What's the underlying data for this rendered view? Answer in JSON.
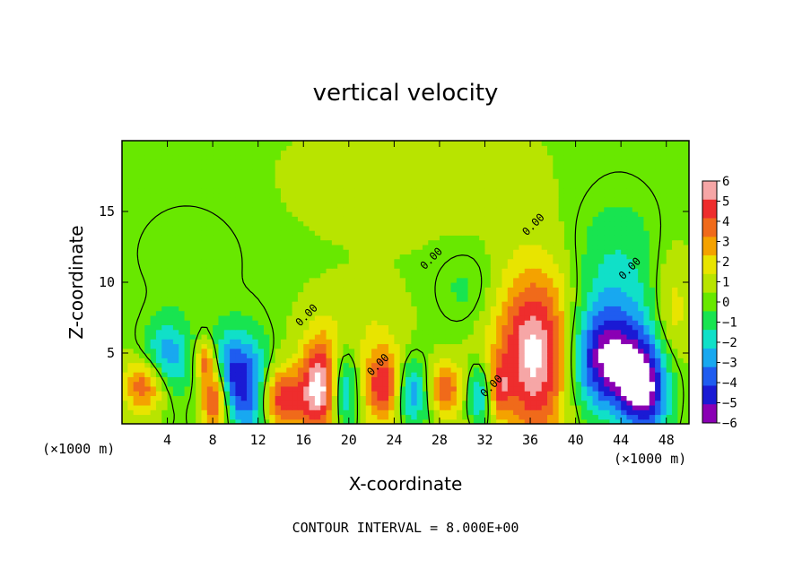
{
  "chart_data": {
    "type": "heatmap",
    "title": "vertical velocity",
    "xlabel": "X-coordinate",
    "ylabel": "Z-coordinate",
    "x_unit_label": "(×1000 m)",
    "x_unit_label_right": "(×1000 m)",
    "xlim": [
      0,
      50
    ],
    "ylim": [
      0,
      20
    ],
    "x_ticks": [
      4,
      8,
      12,
      16,
      20,
      24,
      28,
      32,
      36,
      40,
      44,
      48
    ],
    "y_ticks": [
      5,
      10,
      15
    ],
    "colorbar": {
      "ticks": [
        6,
        5,
        4,
        3,
        2,
        1,
        0,
        -1,
        -2,
        -3,
        -4,
        -5,
        -6
      ],
      "colors": [
        "#f6a6a6",
        "#ee2d2d",
        "#f06a1a",
        "#f4a200",
        "#e8e400",
        "#b8e400",
        "#68e800",
        "#18e450",
        "#10e0c8",
        "#18a8f0",
        "#1f5cf0",
        "#1a1ad4",
        "#8a00b4"
      ]
    },
    "contour_labels": [
      {
        "text": "0.00",
        "x": 16.5,
        "y": 7.5
      },
      {
        "text": "0.00",
        "x": 27.5,
        "y": 11.5
      },
      {
        "text": "0.00",
        "x": 22.8,
        "y": 4.0
      },
      {
        "text": "0.00",
        "x": 36.5,
        "y": 13.9
      },
      {
        "text": "0.00",
        "x": 45.0,
        "y": 10.8
      },
      {
        "text": "0.00",
        "x": 32.8,
        "y": 2.5
      }
    ],
    "features": [
      {
        "x": 36.5,
        "z": 5.0,
        "sx": 2.6,
        "sz": 4.2,
        "w": 6.5
      },
      {
        "x": 42.5,
        "z": 4.5,
        "sx": 2.4,
        "sz": 2.6,
        "w": -6.0
      },
      {
        "x": 46.0,
        "z": 2.5,
        "sx": 1.6,
        "sz": 2.3,
        "w": -6.0
      },
      {
        "x": 43.5,
        "z": 9.5,
        "sx": 3.0,
        "sz": 4.5,
        "w": -2.2
      },
      {
        "x": 48.5,
        "z": 8.0,
        "sx": 1.2,
        "sz": 3.0,
        "w": 2.0
      },
      {
        "x": 17.5,
        "z": 2.6,
        "sx": 1.2,
        "sz": 2.4,
        "w": 6.5
      },
      {
        "x": 19.5,
        "z": 2.5,
        "sx": 0.9,
        "sz": 2.0,
        "w": -3.5
      },
      {
        "x": 14.0,
        "z": 1.8,
        "sx": 1.4,
        "sz": 1.6,
        "w": 5.0
      },
      {
        "x": 11.5,
        "z": 2.5,
        "sx": 1.2,
        "sz": 2.6,
        "w": -4.0
      },
      {
        "x": 8.3,
        "z": 2.0,
        "sx": 0.9,
        "sz": 1.8,
        "w": 6.5
      },
      {
        "x": 9.3,
        "z": 3.2,
        "sx": 1.2,
        "sz": 2.2,
        "w": -5.5
      },
      {
        "x": 2.0,
        "z": 2.8,
        "sx": 1.3,
        "sz": 1.3,
        "w": 4.0
      },
      {
        "x": 4.0,
        "z": 4.8,
        "sx": 1.5,
        "sz": 1.8,
        "w": -3.5
      },
      {
        "x": 7.3,
        "z": 4.5,
        "sx": 0.6,
        "sz": 1.0,
        "w": 3.5
      },
      {
        "x": 23.0,
        "z": 2.8,
        "sx": 1.2,
        "sz": 1.8,
        "w": 5.0
      },
      {
        "x": 25.5,
        "z": 2.3,
        "sx": 1.0,
        "sz": 1.6,
        "w": -3.5
      },
      {
        "x": 28.5,
        "z": 2.5,
        "sx": 1.0,
        "sz": 1.3,
        "w": 4.0
      },
      {
        "x": 31.5,
        "z": 2.0,
        "sx": 0.8,
        "sz": 1.6,
        "w": -3.5
      },
      {
        "x": 33.3,
        "z": 2.5,
        "sx": 0.6,
        "sz": 1.4,
        "w": 3.0
      },
      {
        "x": 21.0,
        "z": 7.0,
        "sx": 3.0,
        "sz": 2.0,
        "w": 1.0
      },
      {
        "x": 6.0,
        "z": 12.0,
        "sx": 4.0,
        "sz": 3.0,
        "w": -0.7
      },
      {
        "x": 30.5,
        "z": 9.5,
        "sx": 2.0,
        "sz": 2.0,
        "w": -1.2
      },
      {
        "x": 26.0,
        "z": 17.0,
        "sx": 8.0,
        "sz": 3.0,
        "w": 0.6
      }
    ]
  },
  "footer_text": "CONTOUR INTERVAL =  8.000E+00"
}
